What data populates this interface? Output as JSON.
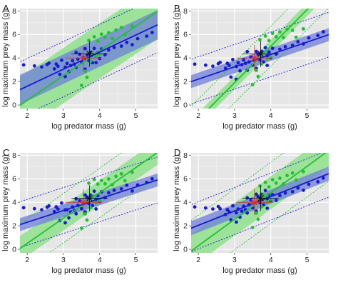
{
  "figure": {
    "xlabel": "log predator mass (g)",
    "ylabel": "log maximum prey mass (g)"
  },
  "colors": {
    "panel_bg": "#e6e6e6",
    "grid": "#ffffff",
    "blue": "#1a1ad6",
    "blue_band": "#6f7fd9",
    "green": "#22c033",
    "green_band": "#8ee08a",
    "red": "#e0302a",
    "black": "#111111"
  },
  "chart_data": [
    {
      "panel": "A",
      "type": "scatter",
      "xlabel": "log predator mass (g)",
      "ylabel": "log maximum prey mass (g)",
      "xlim": [
        1.8,
        5.6
      ],
      "ylim": [
        -0.3,
        8.2
      ],
      "xticks": [
        2,
        3,
        4,
        5
      ],
      "yticks": [
        0,
        2,
        4,
        6,
        8
      ],
      "blue_fit": {
        "intercept": -1.3,
        "slope": 1.45
      },
      "green_fit": {
        "intercept": -3.8,
        "slope": 2.1
      },
      "blue_band_halfwidth": 1.25,
      "green_band_halfwidth": 2.35,
      "blue_pi_halfwidth": 2.35,
      "green_pi_halfwidth": null
    },
    {
      "panel": "B",
      "type": "scatter",
      "xlabel": "log predator mass (g)",
      "ylabel": "log maximum prey mass (g)",
      "xlim": [
        1.8,
        5.6
      ],
      "ylim": [
        -0.3,
        8.2
      ],
      "xticks": [
        2,
        3,
        4,
        5
      ],
      "yticks": [
        0,
        2,
        4,
        6,
        8
      ],
      "blue_fit": {
        "intercept": 0.1,
        "slope": 1.05
      },
      "green_fit": {
        "intercept": -7.4,
        "slope": 3.1
      },
      "blue_band_halfwidth": 0.55,
      "green_band_halfwidth": 0.55,
      "blue_pi_halfwidth": 1.9,
      "green_pi_halfwidth": 1.7
    },
    {
      "panel": "C",
      "type": "scatter",
      "xlabel": "log predator mass (g)",
      "ylabel": "log maximum prey mass (g)",
      "xlim": [
        1.8,
        5.6
      ],
      "ylim": [
        -0.3,
        8.2
      ],
      "xticks": [
        2,
        3,
        4,
        5
      ],
      "yticks": [
        0,
        2,
        4,
        6,
        8
      ],
      "blue_fit": {
        "intercept": 0.3,
        "slope": 1.0
      },
      "green_fit": {
        "intercept": -3.8,
        "slope": 2.15
      },
      "blue_band_halfwidth": 0.55,
      "green_band_halfwidth": 1.05,
      "blue_pi_halfwidth": 1.95,
      "green_pi_halfwidth": 2.1
    },
    {
      "panel": "D",
      "type": "scatter",
      "xlabel": "log predator mass (g)",
      "ylabel": "log maximum prey mass (g)",
      "xlim": [
        1.8,
        5.6
      ],
      "ylim": [
        -0.3,
        8.2
      ],
      "xticks": [
        2,
        3,
        4,
        5
      ],
      "yticks": [
        0,
        2,
        4,
        6,
        8
      ],
      "blue_fit": {
        "intercept": -0.4,
        "slope": 1.22
      },
      "green_fit": {
        "intercept": -4.2,
        "slope": 2.25
      },
      "blue_band_halfwidth": 0.6,
      "green_band_halfwidth": 1.4,
      "blue_pi_halfwidth": 2.0,
      "green_pi_halfwidth": 2.6
    }
  ],
  "points": {
    "blue": [
      [
        1.9,
        3.5
      ],
      [
        2.2,
        3.4
      ],
      [
        2.4,
        3.3
      ],
      [
        2.55,
        3.5
      ],
      [
        2.6,
        3.6
      ],
      [
        2.75,
        3.1
      ],
      [
        2.8,
        3.5
      ],
      [
        2.85,
        3.3
      ],
      [
        2.95,
        3.8
      ],
      [
        3.05,
        3.2
      ],
      [
        3.1,
        3.5
      ],
      [
        3.15,
        2.8
      ],
      [
        3.2,
        3.3
      ],
      [
        3.25,
        3.7
      ],
      [
        3.3,
        3.4
      ],
      [
        3.35,
        3.1
      ],
      [
        3.4,
        3.8
      ],
      [
        3.45,
        4.2
      ],
      [
        3.5,
        3.5
      ],
      [
        3.55,
        3.9
      ],
      [
        3.6,
        3.2
      ],
      [
        3.65,
        4.4
      ],
      [
        3.7,
        3.9
      ],
      [
        3.75,
        4.6
      ],
      [
        3.8,
        3.7
      ],
      [
        3.85,
        4.9
      ],
      [
        3.9,
        4.2
      ],
      [
        3.95,
        4.5
      ],
      [
        4.0,
        4.0
      ],
      [
        4.05,
        4.8
      ],
      [
        4.15,
        4.3
      ],
      [
        4.25,
        4.7
      ],
      [
        4.4,
        4.9
      ],
      [
        4.6,
        5.0
      ],
      [
        4.75,
        5.3
      ],
      [
        4.9,
        5.1
      ],
      [
        5.05,
        5.6
      ],
      [
        5.3,
        5.8
      ],
      [
        5.45,
        6.1
      ],
      [
        3.35,
        4.4
      ],
      [
        3.6,
        4.7
      ],
      [
        3.9,
        3.5
      ],
      [
        2.9,
        2.5
      ],
      [
        3.05,
        2.3
      ]
    ],
    "green": [
      [
        3.7,
        5.5
      ],
      [
        3.85,
        5.8
      ],
      [
        3.95,
        5.4
      ],
      [
        4.05,
        6.0
      ],
      [
        4.15,
        5.7
      ],
      [
        4.25,
        6.1
      ],
      [
        4.35,
        5.6
      ],
      [
        4.45,
        6.3
      ],
      [
        4.6,
        6.5
      ],
      [
        4.7,
        5.9
      ],
      [
        4.9,
        6.6
      ],
      [
        3.75,
        3.6
      ],
      [
        3.9,
        4.0
      ],
      [
        4.0,
        4.2
      ],
      [
        3.65,
        2.5
      ],
      [
        3.5,
        1.8
      ],
      [
        3.6,
        3.0
      ],
      [
        3.8,
        4.5
      ]
    ],
    "red_center": [
      3.55,
      4.0
    ],
    "black_center": [
      3.72,
      4.35
    ]
  }
}
